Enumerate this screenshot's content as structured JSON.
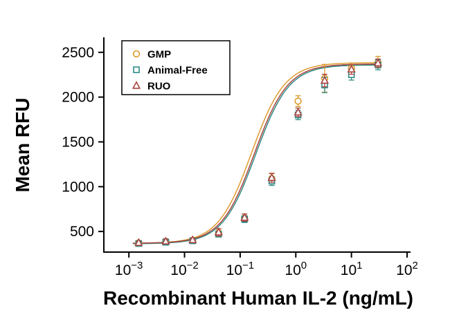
{
  "chart_data": {
    "type": "scatter",
    "title": "",
    "xlabel": "Recombinant Human IL-2 (ng/mL)",
    "ylabel": "Mean RFU",
    "x_scale": "log10",
    "grid": false,
    "legend_position": "top-left",
    "x_axis": {
      "label_base": "10",
      "tick_exponents": [
        -3,
        -2,
        -1,
        0,
        1,
        2
      ],
      "min_log": -3.45,
      "max_log": 2.0
    },
    "y_axis": {
      "ticks": [
        500,
        1000,
        1500,
        2000,
        2500
      ],
      "min": 270,
      "max": 2660
    },
    "axis_color": "#000000",
    "series": [
      {
        "name": "GMP",
        "marker": "circle",
        "color": "#DD9B2F",
        "x": [
          0.0015,
          0.0046,
          0.014,
          0.041,
          0.12,
          0.37,
          1.1,
          3.3,
          10,
          30
        ],
        "y": [
          372,
          386,
          402,
          480,
          650,
          1090,
          1955,
          2210,
          2320,
          2390
        ],
        "sd": [
          18,
          22,
          16,
          38,
          45,
          55,
          60,
          155,
          60,
          65
        ],
        "fit": {
          "bottom": 368,
          "top": 2385,
          "ec50": 0.16,
          "hill": 1.45
        }
      },
      {
        "name": "Animal-Free",
        "marker": "square",
        "color": "#2E8B85",
        "x": [
          0.0015,
          0.0046,
          0.014,
          0.041,
          0.12,
          0.37,
          1.1,
          3.3,
          10,
          30
        ],
        "y": [
          366,
          380,
          396,
          470,
          638,
          1062,
          1800,
          2135,
          2250,
          2360
        ],
        "sd": [
          15,
          20,
          14,
          30,
          38,
          48,
          52,
          85,
          60,
          55
        ],
        "fit": {
          "bottom": 363,
          "top": 2360,
          "ec50": 0.19,
          "hill": 1.45
        }
      },
      {
        "name": "RUO",
        "marker": "triangle",
        "color": "#A8433E",
        "x": [
          0.0015,
          0.0046,
          0.014,
          0.041,
          0.12,
          0.37,
          1.1,
          3.3,
          10,
          30
        ],
        "y": [
          374,
          390,
          405,
          492,
          655,
          1100,
          1830,
          2185,
          2310,
          2380
        ],
        "sd": [
          16,
          28,
          18,
          42,
          40,
          50,
          48,
          70,
          55,
          45
        ],
        "fit": {
          "bottom": 368,
          "top": 2370,
          "ec50": 0.18,
          "hill": 1.45
        }
      }
    ]
  }
}
